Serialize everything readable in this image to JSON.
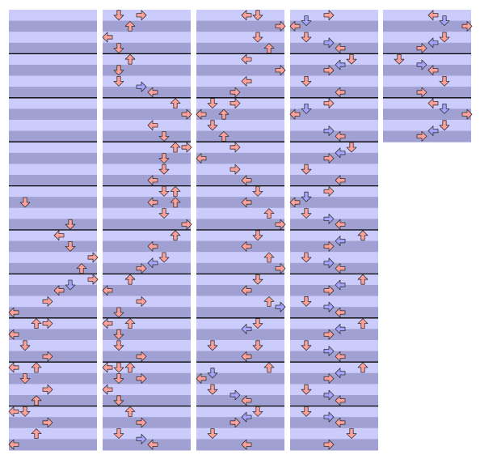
{
  "step_chart": {
    "columns": [
      {
        "measures": 10,
        "notes": [
          [
            34,
            1,
            0
          ],
          [
            38,
            5,
            0
          ],
          [
            40,
            4,
            0
          ],
          [
            42,
            5,
            0
          ],
          [
            44,
            7,
            0
          ],
          [
            46,
            6,
            0
          ],
          [
            48,
            7,
            0
          ],
          [
            49,
            5,
            1
          ],
          [
            50,
            4,
            0
          ],
          [
            52,
            3,
            0
          ],
          [
            54,
            0,
            0
          ],
          [
            56,
            2,
            0
          ],
          [
            56,
            3,
            0
          ],
          [
            58,
            0,
            0
          ],
          [
            60,
            1,
            0
          ],
          [
            62,
            3,
            0
          ],
          [
            64,
            0,
            0
          ],
          [
            64,
            2,
            0
          ],
          [
            66,
            1,
            0
          ],
          [
            68,
            3,
            0
          ],
          [
            70,
            2,
            0
          ],
          [
            72,
            0,
            0
          ],
          [
            72,
            1,
            0
          ],
          [
            74,
            3,
            0
          ],
          [
            76,
            2,
            0
          ],
          [
            78,
            0,
            0
          ]
        ]
      },
      {
        "measures": 10,
        "notes": [
          [
            0,
            1,
            0
          ],
          [
            0,
            3,
            0
          ],
          [
            2,
            2,
            0
          ],
          [
            4,
            0,
            0
          ],
          [
            6,
            1,
            0
          ],
          [
            8,
            2,
            0
          ],
          [
            10,
            1,
            0
          ],
          [
            12,
            1,
            0
          ],
          [
            13,
            3,
            1
          ],
          [
            14,
            4,
            0
          ],
          [
            16,
            6,
            0
          ],
          [
            18,
            7,
            0
          ],
          [
            20,
            4,
            0
          ],
          [
            22,
            5,
            0
          ],
          [
            24,
            6,
            0
          ],
          [
            24,
            7,
            0
          ],
          [
            26,
            5,
            0
          ],
          [
            28,
            5,
            0
          ],
          [
            30,
            4,
            0
          ],
          [
            32,
            5,
            0
          ],
          [
            32,
            6,
            0
          ],
          [
            34,
            4,
            0
          ],
          [
            34,
            6,
            0
          ],
          [
            36,
            5,
            0
          ],
          [
            38,
            7,
            0
          ],
          [
            40,
            6,
            0
          ],
          [
            42,
            4,
            0
          ],
          [
            44,
            5,
            0
          ],
          [
            45,
            4,
            1
          ],
          [
            46,
            3,
            0
          ],
          [
            48,
            2,
            0
          ],
          [
            50,
            0,
            0
          ],
          [
            52,
            3,
            0
          ],
          [
            54,
            1,
            0
          ],
          [
            56,
            0,
            0
          ],
          [
            56,
            2,
            0
          ],
          [
            58,
            1,
            0
          ],
          [
            60,
            1,
            0
          ],
          [
            62,
            3,
            0
          ],
          [
            64,
            0,
            0
          ],
          [
            64,
            1,
            0
          ],
          [
            64,
            2,
            0
          ],
          [
            66,
            1,
            0
          ],
          [
            66,
            3,
            0
          ],
          [
            68,
            0,
            0
          ],
          [
            70,
            1,
            0
          ],
          [
            72,
            2,
            0
          ],
          [
            74,
            3,
            0
          ],
          [
            76,
            1,
            0
          ],
          [
            77,
            3,
            1
          ],
          [
            78,
            4,
            0
          ]
        ]
      },
      {
        "measures": 10,
        "notes": [
          [
            0,
            4,
            0
          ],
          [
            0,
            5,
            0
          ],
          [
            2,
            7,
            0
          ],
          [
            4,
            5,
            0
          ],
          [
            6,
            6,
            0
          ],
          [
            8,
            4,
            0
          ],
          [
            10,
            7,
            0
          ],
          [
            12,
            4,
            0
          ],
          [
            14,
            3,
            0
          ],
          [
            16,
            1,
            0
          ],
          [
            16,
            3,
            0
          ],
          [
            18,
            0,
            0
          ],
          [
            18,
            2,
            0
          ],
          [
            20,
            1,
            0
          ],
          [
            22,
            2,
            0
          ],
          [
            24,
            3,
            0
          ],
          [
            26,
            0,
            0
          ],
          [
            28,
            3,
            0
          ],
          [
            30,
            4,
            0
          ],
          [
            32,
            5,
            0
          ],
          [
            34,
            4,
            0
          ],
          [
            36,
            6,
            0
          ],
          [
            38,
            7,
            0
          ],
          [
            40,
            5,
            0
          ],
          [
            42,
            4,
            0
          ],
          [
            44,
            6,
            0
          ],
          [
            46,
            7,
            0
          ],
          [
            48,
            5,
            0
          ],
          [
            50,
            4,
            0
          ],
          [
            52,
            6,
            0
          ],
          [
            53,
            7,
            1
          ],
          [
            56,
            5,
            0
          ],
          [
            57,
            4,
            1
          ],
          [
            60,
            1,
            0
          ],
          [
            60,
            5,
            0
          ],
          [
            62,
            4,
            0
          ],
          [
            64,
            6,
            0
          ],
          [
            65,
            1,
            1
          ],
          [
            66,
            0,
            0
          ],
          [
            68,
            1,
            0
          ],
          [
            69,
            3,
            1
          ],
          [
            70,
            4,
            0
          ],
          [
            72,
            5,
            0
          ],
          [
            73,
            4,
            1
          ],
          [
            74,
            3,
            0
          ],
          [
            76,
            1,
            0
          ],
          [
            78,
            4,
            0
          ]
        ]
      },
      {
        "measures": 10,
        "notes": [
          [
            0,
            3,
            0
          ],
          [
            1,
            1,
            1
          ],
          [
            2,
            0,
            0
          ],
          [
            4,
            1,
            0
          ],
          [
            5,
            3,
            1
          ],
          [
            6,
            4,
            0
          ],
          [
            8,
            5,
            0
          ],
          [
            9,
            4,
            1
          ],
          [
            10,
            3,
            0
          ],
          [
            12,
            1,
            0
          ],
          [
            14,
            4,
            0
          ],
          [
            16,
            3,
            0
          ],
          [
            17,
            1,
            1
          ],
          [
            18,
            0,
            0
          ],
          [
            21,
            3,
            1
          ],
          [
            22,
            4,
            0
          ],
          [
            24,
            5,
            0
          ],
          [
            25,
            4,
            1
          ],
          [
            26,
            3,
            0
          ],
          [
            28,
            1,
            0
          ],
          [
            30,
            4,
            0
          ],
          [
            32,
            3,
            0
          ],
          [
            33,
            1,
            1
          ],
          [
            34,
            0,
            0
          ],
          [
            36,
            1,
            0
          ],
          [
            37,
            3,
            1
          ],
          [
            38,
            4,
            0
          ],
          [
            40,
            6,
            0
          ],
          [
            41,
            4,
            1
          ],
          [
            42,
            3,
            0
          ],
          [
            44,
            1,
            0
          ],
          [
            45,
            3,
            1
          ],
          [
            46,
            4,
            0
          ],
          [
            48,
            6,
            0
          ],
          [
            49,
            4,
            1
          ],
          [
            50,
            3,
            0
          ],
          [
            52,
            1,
            0
          ],
          [
            53,
            3,
            1
          ],
          [
            54,
            4,
            0
          ],
          [
            56,
            6,
            0
          ],
          [
            57,
            4,
            1
          ],
          [
            58,
            3,
            0
          ],
          [
            60,
            1,
            0
          ],
          [
            61,
            3,
            1
          ],
          [
            62,
            4,
            0
          ],
          [
            64,
            6,
            0
          ],
          [
            65,
            4,
            1
          ],
          [
            66,
            3,
            0
          ],
          [
            68,
            1,
            0
          ],
          [
            69,
            3,
            1
          ],
          [
            70,
            4,
            0
          ],
          [
            72,
            1,
            0
          ],
          [
            73,
            3,
            1
          ],
          [
            74,
            4,
            0
          ],
          [
            76,
            5,
            0
          ],
          [
            78,
            3,
            0
          ]
        ]
      },
      {
        "measures": 3,
        "notes": [
          [
            0,
            4,
            0
          ],
          [
            1,
            5,
            1
          ],
          [
            2,
            7,
            0
          ],
          [
            4,
            5,
            0
          ],
          [
            5,
            4,
            1
          ],
          [
            6,
            3,
            0
          ],
          [
            8,
            1,
            0
          ],
          [
            9,
            3,
            1
          ],
          [
            10,
            4,
            0
          ],
          [
            12,
            5,
            0
          ],
          [
            14,
            3,
            0
          ],
          [
            16,
            4,
            0
          ],
          [
            17,
            5,
            1
          ],
          [
            18,
            7,
            0
          ],
          [
            20,
            5,
            0
          ],
          [
            21,
            4,
            1
          ],
          [
            22,
            3,
            0
          ]
        ]
      }
    ]
  }
}
